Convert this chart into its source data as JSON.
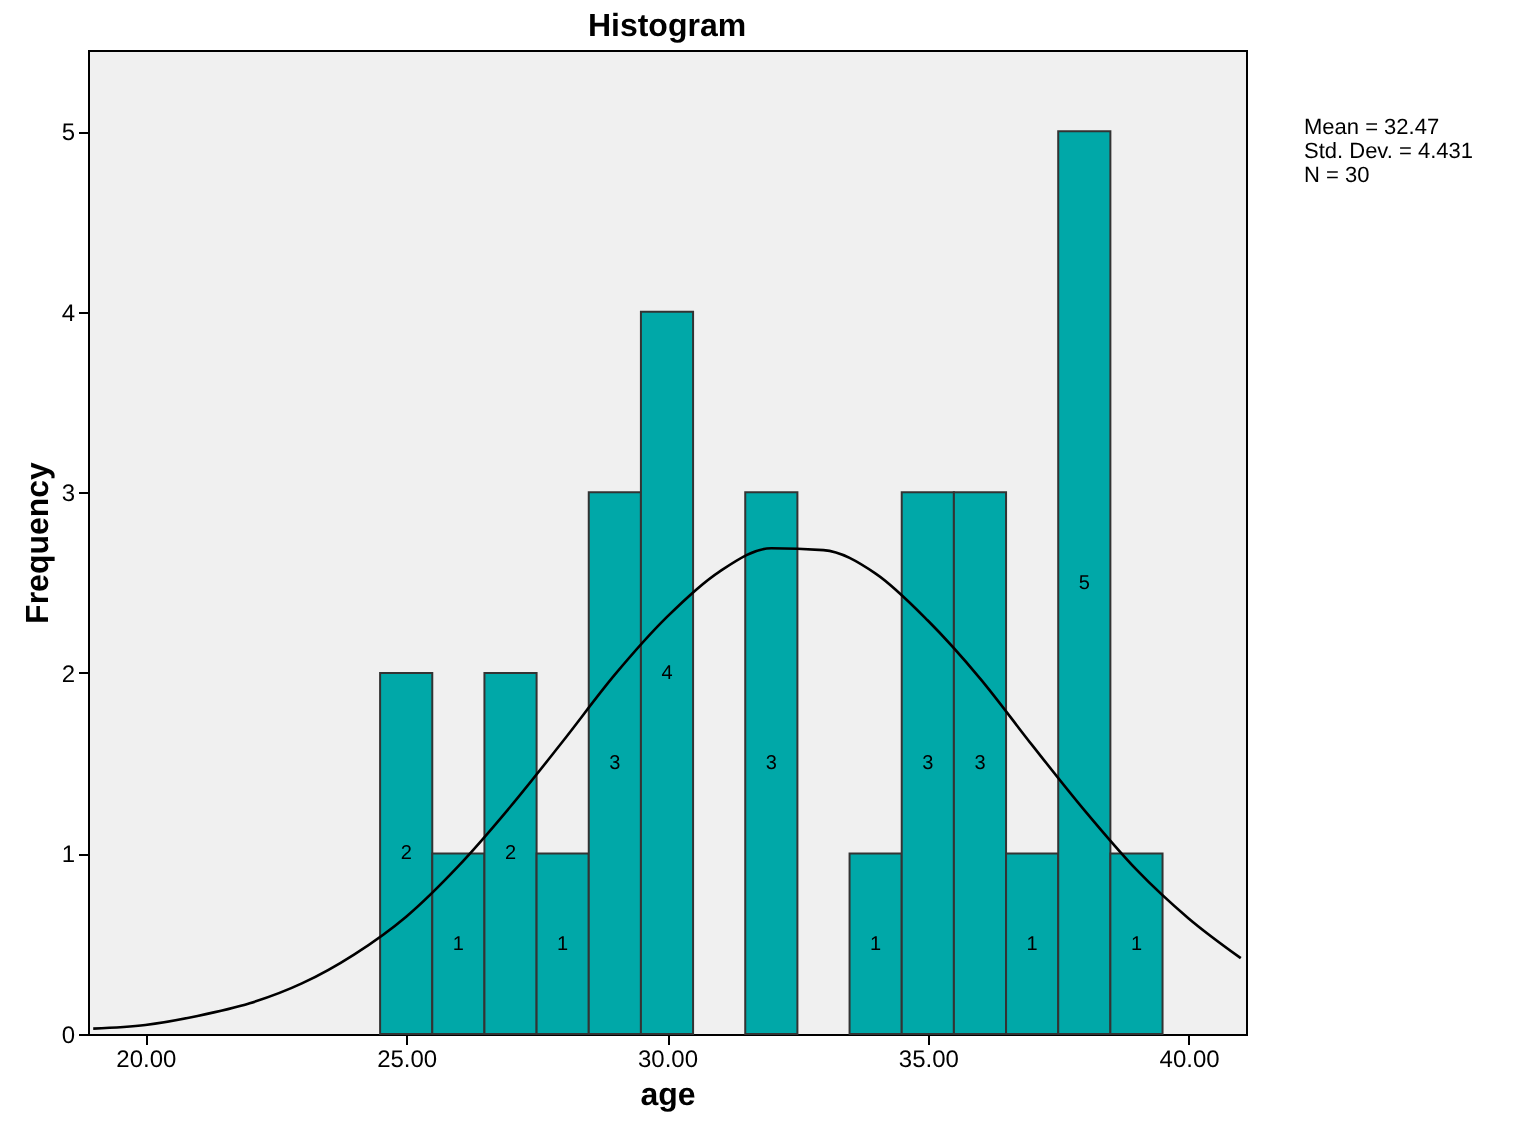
{
  "chart_data": {
    "type": "histogram",
    "title": "Histogram",
    "xlabel": "age",
    "ylabel": "Frequency",
    "bins": [
      24.5,
      25.5,
      26.5,
      27.5,
      28.5,
      29.5,
      30.5,
      31.5,
      32.5,
      33.5,
      34.5,
      35.5,
      36.5,
      37.5,
      38.5,
      39.5
    ],
    "values": [
      2,
      1,
      2,
      1,
      3,
      4,
      0,
      3,
      0,
      1,
      3,
      3,
      1,
      5,
      1
    ],
    "color": "#00a8a8",
    "value_labels": [
      "2",
      "1",
      "2",
      "1",
      "3",
      "4",
      null,
      "3",
      null,
      "1",
      "3",
      "3",
      "1",
      "5",
      "1"
    ],
    "series": [
      {
        "type": "line",
        "color": "#000000",
        "x": [
          19,
          20,
          21,
          22,
          23,
          24,
          25,
          26,
          27,
          28,
          29,
          30,
          31,
          32,
          33,
          34,
          35,
          36,
          37,
          38,
          39,
          40,
          41
        ],
        "values": [
          0.03,
          0.05,
          0.1,
          0.17,
          0.28,
          0.44,
          0.65,
          0.93,
          1.26,
          1.62,
          1.99,
          2.31,
          2.56,
          2.69,
          2.68,
          2.55,
          2.29,
          1.97,
          1.6,
          1.24,
          0.91,
          0.64,
          0.42
        ]
      }
    ],
    "xlim": [
      18.9,
      41.1
    ],
    "ylim": [
      0,
      5.45
    ],
    "xticks": [
      {
        "value": 20,
        "label": "20.00"
      },
      {
        "value": 25,
        "label": "25.00"
      },
      {
        "value": 30,
        "label": "30.00"
      },
      {
        "value": 35,
        "label": "35.00"
      },
      {
        "value": 40,
        "label": "40.00"
      }
    ],
    "yticks": [
      0,
      1,
      2,
      3,
      4,
      5
    ],
    "annotations": [
      "Mean = 32.47",
      "Std. Dev. = 4.431",
      "N = 30"
    ]
  }
}
